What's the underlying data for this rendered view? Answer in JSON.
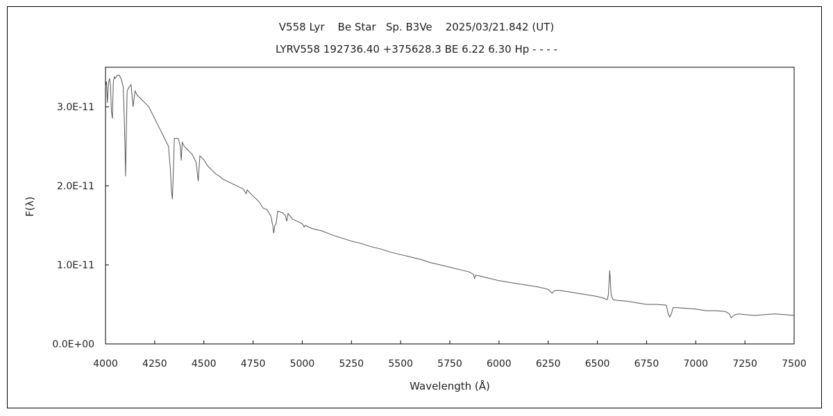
{
  "chart_data": {
    "type": "line",
    "title": "V558 Lyr    Be Star   Sp. B3Ve    2025/03/21.842 (UT)",
    "subtitle": "LYRV558 192736.40 +375628.3 BE 6.22 6.30 Hp - - - -",
    "xlabel": "Wavelength (Å)",
    "ylabel": "F(λ)",
    "xlim": [
      4000,
      7500
    ],
    "ylim": [
      0,
      3.5e-11
    ],
    "x_ticks": [
      4000,
      4250,
      4500,
      4750,
      5000,
      5250,
      5500,
      5750,
      6000,
      6250,
      6500,
      6750,
      7000,
      7250,
      7500
    ],
    "x_tick_labels": [
      "4000",
      "4250",
      "4500",
      "4750",
      "5000",
      "5250",
      "5500",
      "5750",
      "6000",
      "6250",
      "6500",
      "6750",
      "7000",
      "7250",
      "7500"
    ],
    "y_ticks": [
      0,
      1e-11,
      2e-11,
      3e-11
    ],
    "y_tick_labels": [
      "0.0E+00",
      "1.0E-11",
      "2.0E-11",
      "3.0E-11"
    ],
    "grid": false,
    "line_color": "#555555",
    "series": [
      {
        "x": [
          4000,
          4005,
          4010,
          4015,
          4020,
          4025,
          4030,
          4035,
          4040,
          4045,
          4050,
          4060,
          4070,
          4080,
          4090,
          4095,
          4100,
          4102,
          4105,
          4110,
          4120,
          4130,
          4140,
          4150,
          4160,
          4180,
          4200,
          4220,
          4240,
          4260,
          4280,
          4300,
          4320,
          4330,
          4335,
          4340,
          4345,
          4350,
          4360,
          4370,
          4380,
          4385,
          4390,
          4400,
          4420,
          4440,
          4460,
          4465,
          4471,
          4475,
          4480,
          4500,
          4520,
          4540,
          4560,
          4580,
          4600,
          4650,
          4700,
          4715,
          4720,
          4730,
          4750,
          4780,
          4800,
          4820,
          4840,
          4850,
          4855,
          4861,
          4867,
          4875,
          4900,
          4915,
          4921,
          4928,
          4950,
          5000,
          5010,
          5015,
          5050,
          5100,
          5150,
          5200,
          5250,
          5300,
          5350,
          5400,
          5450,
          5500,
          5550,
          5600,
          5650,
          5700,
          5750,
          5800,
          5850,
          5870,
          5876,
          5882,
          5900,
          5950,
          6000,
          6050,
          6100,
          6150,
          6200,
          6250,
          6270,
          6280,
          6300,
          6350,
          6400,
          6450,
          6500,
          6530,
          6550,
          6556,
          6563,
          6570,
          6580,
          6600,
          6650,
          6700,
          6750,
          6800,
          6850,
          6860,
          6868,
          6876,
          6885,
          6900,
          6950,
          7000,
          7050,
          7100,
          7150,
          7170,
          7180,
          7200,
          7220,
          7250,
          7300,
          7350,
          7400,
          7450,
          7500
        ],
        "y": [
          3.25e-11,
          3.32e-11,
          3.05e-11,
          3.3e-11,
          3.36e-11,
          3.28e-11,
          2.95e-11,
          2.85e-11,
          3.32e-11,
          3.38e-11,
          3.36e-11,
          3.4e-11,
          3.4e-11,
          3.35e-11,
          3.25e-11,
          2.9e-11,
          2.4e-11,
          2.12e-11,
          2.6e-11,
          3.2e-11,
          3.25e-11,
          3.28e-11,
          3e-11,
          3.2e-11,
          3.15e-11,
          3.1e-11,
          3.05e-11,
          3e-11,
          2.9e-11,
          2.8e-11,
          2.7e-11,
          2.6e-11,
          2.5e-11,
          2.2e-11,
          1.95e-11,
          1.83e-11,
          2.2e-11,
          2.6e-11,
          2.6e-11,
          2.6e-11,
          2.5e-11,
          2.32e-11,
          2.55e-11,
          2.5e-11,
          2.45e-11,
          2.4e-11,
          2.3e-11,
          2.2e-11,
          2.06e-11,
          2.2e-11,
          2.38e-11,
          2.33e-11,
          2.25e-11,
          2.2e-11,
          2.15e-11,
          2.12e-11,
          2.08e-11,
          2.02e-11,
          1.96e-11,
          1.9e-11,
          1.95e-11,
          1.92e-11,
          1.87e-11,
          1.8e-11,
          1.72e-11,
          1.7e-11,
          1.62e-11,
          1.5e-11,
          1.4e-11,
          1.5e-11,
          1.52e-11,
          1.68e-11,
          1.66e-11,
          1.62e-11,
          1.55e-11,
          1.65e-11,
          1.58e-11,
          1.52e-11,
          1.48e-11,
          1.5e-11,
          1.46e-11,
          1.43e-11,
          1.38e-11,
          1.34e-11,
          1.3e-11,
          1.27e-11,
          1.23e-11,
          1.2e-11,
          1.16e-11,
          1.13e-11,
          1.1e-11,
          1.07e-11,
          1.03e-11,
          1e-11,
          9.7e-12,
          9.4e-12,
          9.1e-12,
          8.8e-12,
          8.3e-12,
          8.7e-12,
          8.6e-12,
          8.3e-12,
          8e-12,
          7.8e-12,
          7.6e-12,
          7.4e-12,
          7.2e-12,
          6.9e-12,
          6.4e-12,
          6.7e-12,
          6.8e-12,
          6.6e-12,
          6.4e-12,
          6.2e-12,
          6e-12,
          5.8e-12,
          5.6e-12,
          6.2e-12,
          9.3e-12,
          6.2e-12,
          5.6e-12,
          5.5e-12,
          5.4e-12,
          5.2e-12,
          5e-12,
          5e-12,
          4.9e-12,
          3.8e-12,
          3.4e-12,
          3.8e-12,
          4.6e-12,
          4.6e-12,
          4.5e-12,
          4.4e-12,
          4.2e-12,
          4.2e-12,
          4.1e-12,
          3.8e-12,
          3.3e-12,
          3.7e-12,
          3.8e-12,
          3.7e-12,
          3.6e-12,
          3.7e-12,
          3.8e-12,
          3.7e-12,
          3.6e-12
        ]
      }
    ]
  }
}
